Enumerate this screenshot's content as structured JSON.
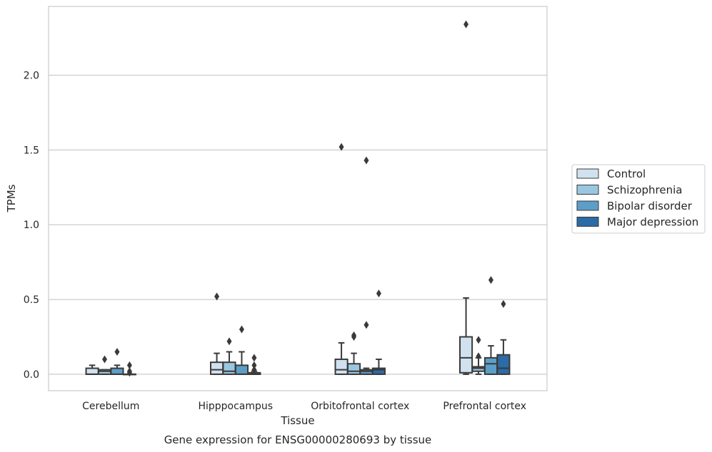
{
  "chart_data": {
    "type": "box",
    "xlabel": "Tissue",
    "ylabel": "TPMs",
    "caption": "Gene expression for ENSG00000280693 by tissue",
    "categories": [
      "Cerebellum",
      "Hipppocampus",
      "Orbitofrontal cortex",
      "Prefrontal cortex"
    ],
    "ylim": [
      -0.11,
      2.46
    ],
    "yticks": [
      0.0,
      0.5,
      1.0,
      1.5,
      2.0
    ],
    "ytick_labels": [
      "0.0",
      "0.5",
      "1.0",
      "1.5",
      "2.0"
    ],
    "grid": "horizontal",
    "legend_position": "right",
    "series": [
      {
        "name": "Control",
        "color": "#d1e1ef",
        "boxes": [
          {
            "whislo": 0.0,
            "q1": 0.0,
            "med": 0.0,
            "q3": 0.04,
            "whishi": 0.06,
            "fliers": []
          },
          {
            "whislo": 0.0,
            "q1": 0.0,
            "med": 0.03,
            "q3": 0.08,
            "whishi": 0.14,
            "fliers": [
              0.52
            ]
          },
          {
            "whislo": 0.0,
            "q1": 0.0,
            "med": 0.03,
            "q3": 0.1,
            "whishi": 0.21,
            "fliers": [
              1.52
            ]
          },
          {
            "whislo": 0.0,
            "q1": 0.01,
            "med": 0.11,
            "q3": 0.25,
            "whishi": 0.51,
            "fliers": [
              2.34
            ]
          }
        ]
      },
      {
        "name": "Schizophrenia",
        "color": "#9ac7e0",
        "boxes": [
          {
            "whislo": 0.0,
            "q1": 0.0,
            "med": 0.02,
            "q3": 0.03,
            "whishi": 0.03,
            "fliers": [
              0.1
            ]
          },
          {
            "whislo": 0.0,
            "q1": 0.0,
            "med": 0.02,
            "q3": 0.08,
            "whishi": 0.15,
            "fliers": [
              0.22
            ]
          },
          {
            "whislo": 0.0,
            "q1": 0.0,
            "med": 0.02,
            "q3": 0.07,
            "whishi": 0.14,
            "fliers": [
              0.25,
              0.26
            ]
          },
          {
            "whislo": 0.0,
            "q1": 0.02,
            "med": 0.04,
            "q3": 0.05,
            "whishi": 0.11,
            "fliers": [
              0.12,
              0.23
            ]
          }
        ]
      },
      {
        "name": "Bipolar disorder",
        "color": "#5d9ec8",
        "boxes": [
          {
            "whislo": 0.0,
            "q1": 0.0,
            "med": 0.0,
            "q3": 0.04,
            "whishi": 0.06,
            "fliers": [
              0.15
            ]
          },
          {
            "whislo": 0.0,
            "q1": 0.0,
            "med": 0.0,
            "q3": 0.06,
            "whishi": 0.15,
            "fliers": [
              0.3
            ]
          },
          {
            "whislo": 0.0,
            "q1": 0.0,
            "med": 0.02,
            "q3": 0.03,
            "whishi": 0.04,
            "fliers": [
              0.33,
              1.43
            ]
          },
          {
            "whislo": 0.0,
            "q1": 0.0,
            "med": 0.07,
            "q3": 0.11,
            "whishi": 0.19,
            "fliers": [
              0.63
            ]
          }
        ]
      },
      {
        "name": "Major depression",
        "color": "#2b6ba6",
        "boxes": [
          {
            "whislo": 0.0,
            "q1": 0.0,
            "med": 0.0,
            "q3": 0.0,
            "whishi": 0.0,
            "fliers": [
              0.01,
              0.02,
              0.06
            ]
          },
          {
            "whislo": 0.0,
            "q1": 0.0,
            "med": 0.0,
            "q3": 0.01,
            "whishi": 0.02,
            "fliers": [
              0.03,
              0.06,
              0.11
            ]
          },
          {
            "whislo": 0.0,
            "q1": 0.0,
            "med": 0.03,
            "q3": 0.04,
            "whishi": 0.1,
            "fliers": [
              0.54
            ]
          },
          {
            "whislo": 0.0,
            "q1": 0.0,
            "med": 0.04,
            "q3": 0.13,
            "whishi": 0.23,
            "fliers": [
              0.47
            ]
          }
        ]
      }
    ]
  },
  "colors": {
    "grid": "#cccccc",
    "frame": "#cccccc",
    "line": "#3a3a3a"
  }
}
